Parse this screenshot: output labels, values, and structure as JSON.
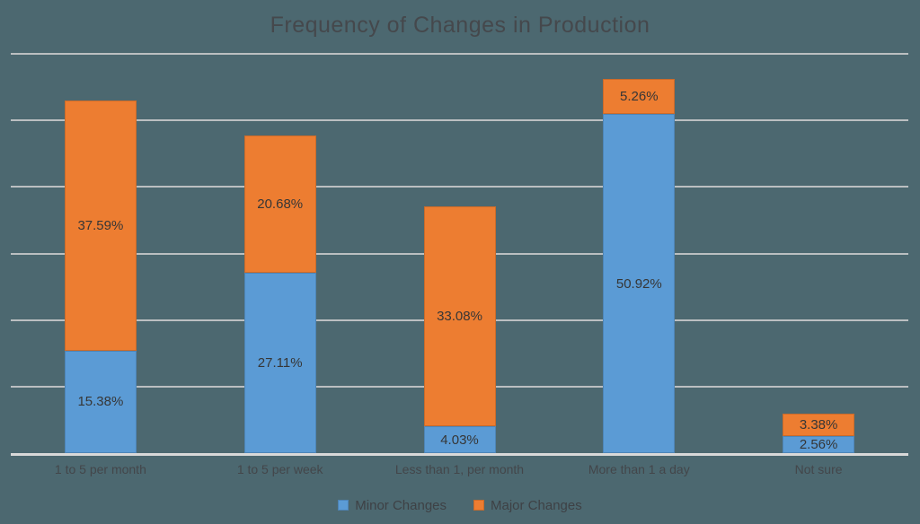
{
  "chart_data": {
    "type": "bar",
    "stacked": true,
    "title": "Frequency of Changes in Production",
    "categories": [
      "1 to 5 per month",
      "1 to 5 per week",
      "Less than 1, per month",
      "More than 1 a day",
      "Not sure"
    ],
    "series": [
      {
        "name": "Minor Changes",
        "color": "#5b9bd5",
        "values": [
          15.38,
          27.11,
          4.03,
          50.92,
          2.56
        ]
      },
      {
        "name": "Major Changes",
        "color": "#ed7d31",
        "values": [
          37.59,
          20.68,
          33.08,
          5.26,
          3.38
        ]
      }
    ],
    "value_suffix": "%",
    "data_labels": "inside-center",
    "xlabel": "",
    "ylabel": "",
    "ylim": [
      0,
      60
    ],
    "grid_step": 10,
    "grid": true,
    "y_axis_tick_labels_visible": false,
    "legend_position": "bottom"
  },
  "colors": {
    "background": "#4c6870",
    "gridline": "#cfcfcf",
    "axis_line": "#d9d9d9",
    "title_text": "#45484c",
    "label_text": "#363636"
  }
}
